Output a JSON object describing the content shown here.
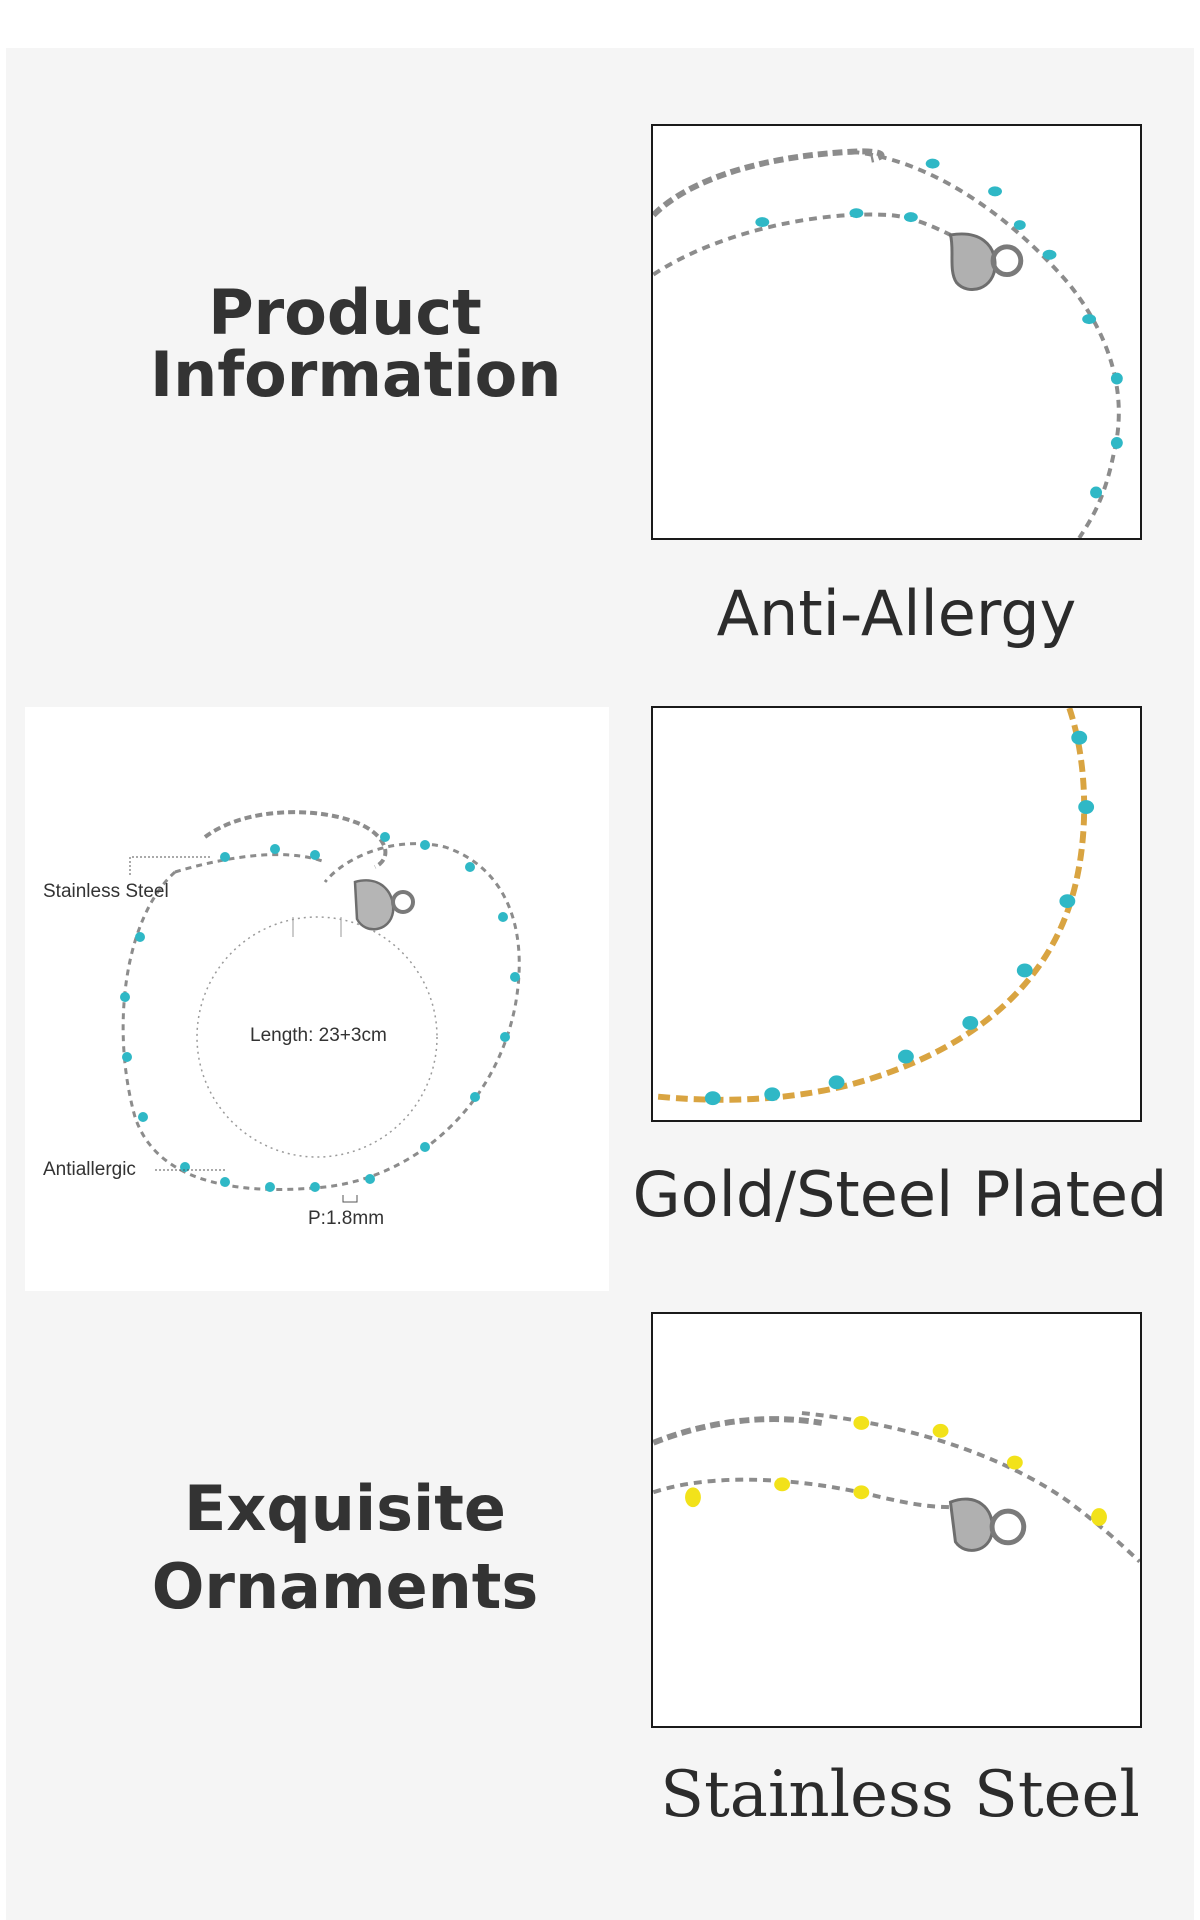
{
  "headings": {
    "product_information": [
      "Product",
      "Information"
    ],
    "exquisite_ornaments": [
      "Exquisite",
      "Ornaments"
    ]
  },
  "captions": {
    "anti_allergy": "Anti-Allergy",
    "plated": "Gold/Steel Plated",
    "stainless": "Stainless Steel"
  },
  "diagram": {
    "stainless_label": "Stainless Steel",
    "length_label": "Length: 23+3cm",
    "antiallergic_label": "Antiallergic",
    "pitch_label": "P:1.8mm"
  },
  "colors": {
    "panel_bg": "#f5f5f5",
    "text": "#333333",
    "turquoise_bead": "#2fb8c6",
    "yellow_bead": "#f2e21a",
    "steel_chain": "#8c8c8c",
    "gold_chain": "#d9a441"
  }
}
